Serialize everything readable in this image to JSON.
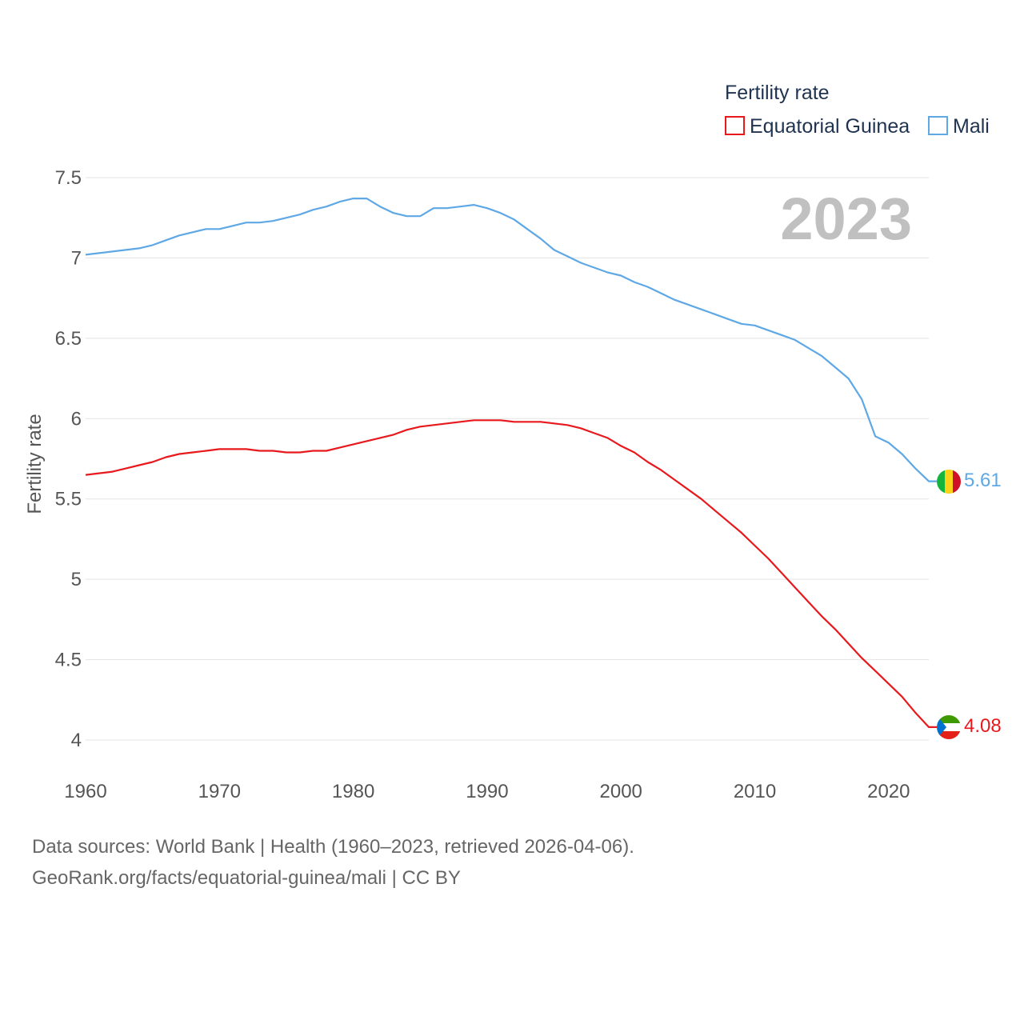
{
  "chart_data": {
    "type": "line",
    "ylabel": "Fertility rate",
    "legend_title": "Fertility rate",
    "year_label": "2023",
    "ylim": [
      4,
      7.5
    ],
    "xlim": [
      1960,
      2023
    ],
    "y_ticks": [
      {
        "value": 4,
        "label": "4"
      },
      {
        "value": 4.5,
        "label": "4.5"
      },
      {
        "value": 5,
        "label": "5"
      },
      {
        "value": 5.5,
        "label": "5.5"
      },
      {
        "value": 6,
        "label": "6"
      },
      {
        "value": 6.5,
        "label": "6.5"
      },
      {
        "value": 7,
        "label": "7"
      },
      {
        "value": 7.5,
        "label": "7.5"
      }
    ],
    "x_ticks": [
      {
        "value": 1960,
        "label": "1960"
      },
      {
        "value": 1970,
        "label": "1970"
      },
      {
        "value": 1980,
        "label": "1980"
      },
      {
        "value": 1990,
        "label": "1990"
      },
      {
        "value": 2000,
        "label": "2000"
      },
      {
        "value": 2010,
        "label": "2010"
      },
      {
        "value": 2020,
        "label": "2020"
      }
    ],
    "x": [
      1960,
      1961,
      1962,
      1963,
      1964,
      1965,
      1966,
      1967,
      1968,
      1969,
      1970,
      1971,
      1972,
      1973,
      1974,
      1975,
      1976,
      1977,
      1978,
      1979,
      1980,
      1981,
      1982,
      1983,
      1984,
      1985,
      1986,
      1987,
      1988,
      1989,
      1990,
      1991,
      1992,
      1993,
      1994,
      1995,
      1996,
      1997,
      1998,
      1999,
      2000,
      2001,
      2002,
      2003,
      2004,
      2005,
      2006,
      2007,
      2008,
      2009,
      2010,
      2011,
      2012,
      2013,
      2014,
      2015,
      2016,
      2017,
      2018,
      2019,
      2020,
      2021,
      2022,
      2023
    ],
    "series": [
      {
        "name": "Equatorial Guinea",
        "color": "#e8191d",
        "end_label": "4.08",
        "flag": "equatorial-guinea-flag-icon",
        "values": [
          5.65,
          5.66,
          5.67,
          5.69,
          5.71,
          5.73,
          5.76,
          5.78,
          5.79,
          5.8,
          5.81,
          5.81,
          5.81,
          5.8,
          5.8,
          5.79,
          5.79,
          5.8,
          5.8,
          5.82,
          5.84,
          5.86,
          5.88,
          5.9,
          5.93,
          5.95,
          5.96,
          5.97,
          5.98,
          5.99,
          5.99,
          5.99,
          5.98,
          5.98,
          5.98,
          5.97,
          5.96,
          5.94,
          5.91,
          5.88,
          5.83,
          5.79,
          5.73,
          5.68,
          5.62,
          5.56,
          5.5,
          5.43,
          5.36,
          5.29,
          5.21,
          5.13,
          5.04,
          4.95,
          4.86,
          4.77,
          4.69,
          4.6,
          4.51,
          4.43,
          4.35,
          4.27,
          4.17,
          4.08
        ]
      },
      {
        "name": "Mali",
        "color": "#5ea8e6",
        "end_label": "5.61",
        "flag": "mali-flag-icon",
        "values": [
          7.02,
          7.03,
          7.04,
          7.05,
          7.06,
          7.08,
          7.11,
          7.14,
          7.16,
          7.18,
          7.18,
          7.2,
          7.22,
          7.22,
          7.23,
          7.25,
          7.27,
          7.3,
          7.32,
          7.35,
          7.37,
          7.37,
          7.32,
          7.28,
          7.26,
          7.26,
          7.31,
          7.31,
          7.32,
          7.33,
          7.31,
          7.28,
          7.24,
          7.18,
          7.12,
          7.05,
          7.01,
          6.97,
          6.94,
          6.91,
          6.89,
          6.85,
          6.82,
          6.78,
          6.74,
          6.71,
          6.68,
          6.65,
          6.62,
          6.59,
          6.58,
          6.55,
          6.52,
          6.49,
          6.44,
          6.39,
          6.32,
          6.25,
          6.12,
          5.89,
          5.85,
          5.78,
          5.69,
          5.61
        ]
      }
    ]
  },
  "footer": {
    "line1": "Data sources: World Bank | Health (1960–2023, retrieved 2026-04-06).",
    "line2": "GeoRank.org/facts/equatorial-guinea/mali | CC BY"
  }
}
